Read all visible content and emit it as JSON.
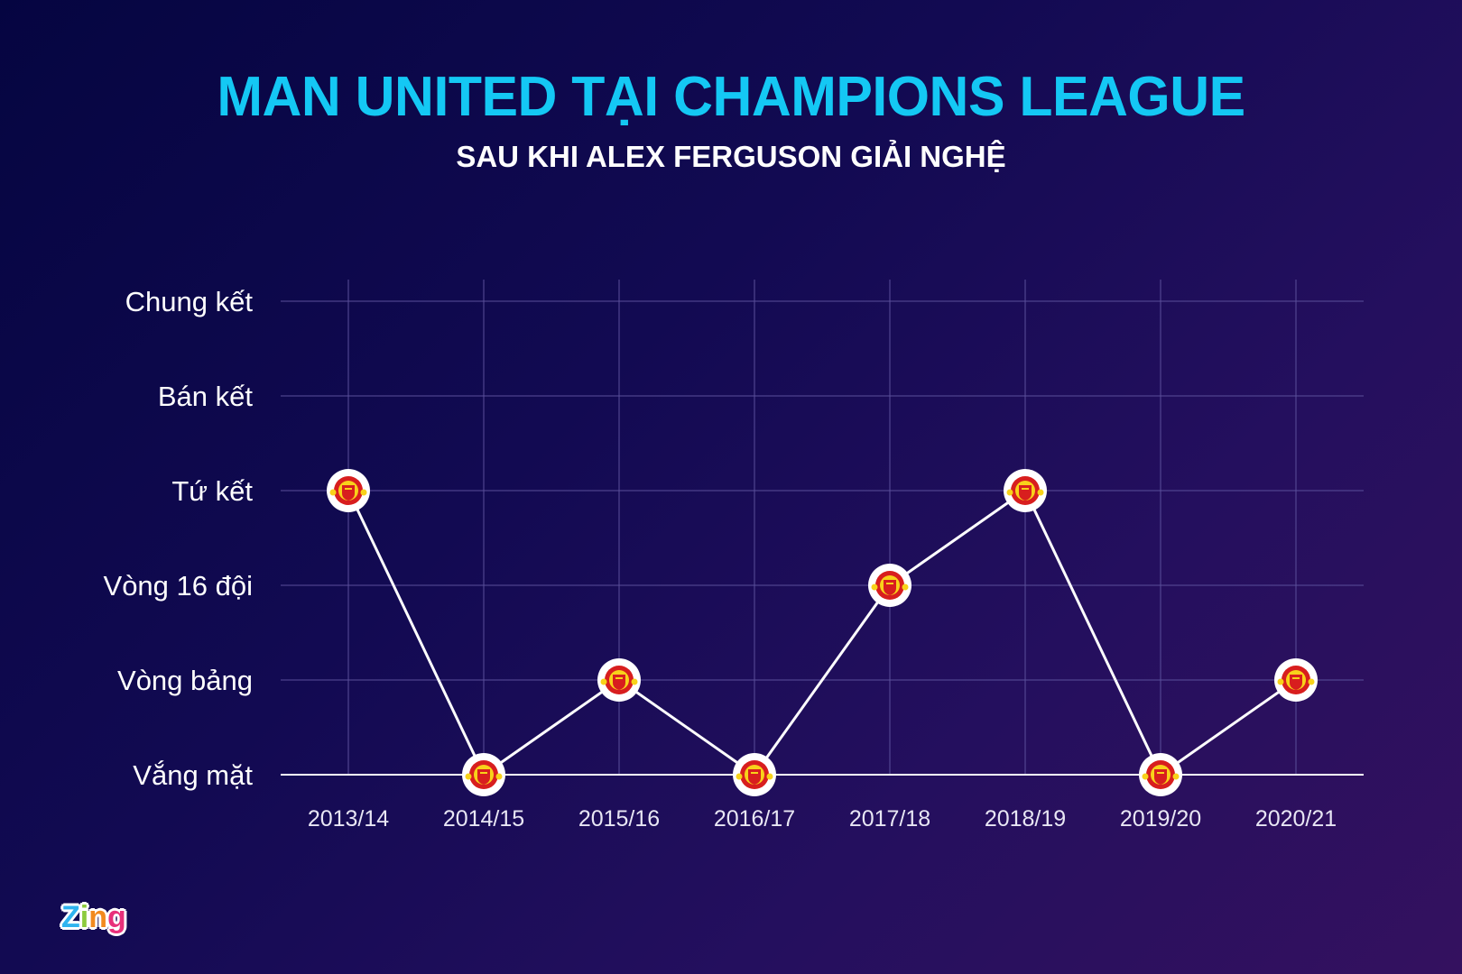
{
  "header": {
    "title": "MAN UNITED TẠI CHAMPIONS LEAGUE",
    "subtitle": "SAU KHI ALEX FERGUSON GIẢI NGHỆ"
  },
  "branding": {
    "logo_letters": [
      "Z",
      "i",
      "n",
      "g"
    ],
    "logo_colors": [
      "#2fb4ef",
      "#8ccb3d",
      "#f28a1e",
      "#e8307a"
    ]
  },
  "colors": {
    "title": "#14c8f4",
    "line": "#ffffff",
    "grid": "#5a4f9a",
    "marker_fill": "#ffffff",
    "badge_red": "#d81e1e",
    "badge_yellow": "#f8d21a"
  },
  "marker_icon": "manchester-united-crest-icon",
  "chart_data": {
    "type": "line",
    "title": "MAN UNITED TẠI CHAMPIONS LEAGUE",
    "subtitle": "SAU KHI ALEX FERGUSON GIẢI NGHỆ",
    "xlabel": "",
    "ylabel": "",
    "categories": [
      "2013/14",
      "2014/15",
      "2015/16",
      "2016/17",
      "2017/18",
      "2018/19",
      "2019/20",
      "2020/21"
    ],
    "y_levels": [
      "Vắng mặt",
      "Vòng bảng",
      "Vòng 16 đội",
      "Tứ kết",
      "Bán kết",
      "Chung kết"
    ],
    "values": [
      3,
      0,
      1,
      0,
      2,
      3,
      0,
      1
    ],
    "value_labels": [
      "Tứ kết",
      "Vắng mặt",
      "Vòng bảng",
      "Vắng mặt",
      "Vòng 16 đội",
      "Tứ kết",
      "Vắng mặt",
      "Vòng bảng"
    ],
    "ylim": [
      0,
      5
    ],
    "grid": true,
    "legend": null
  }
}
